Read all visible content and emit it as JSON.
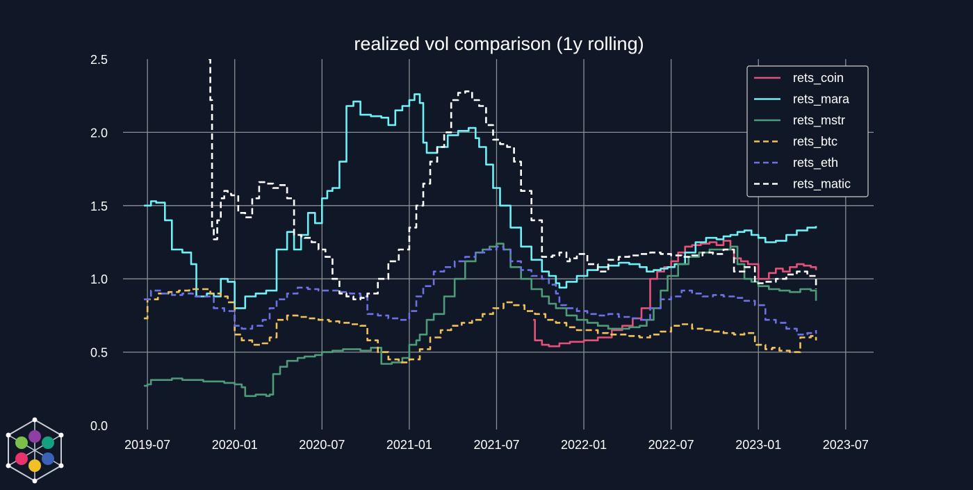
{
  "colors": {
    "background": "#101726",
    "grid": "#8b8f96",
    "legend_bg": "#101726",
    "legend_border": "#d0d0d0",
    "text": "#ffffff"
  },
  "chart_data": {
    "type": "line",
    "title": "realized vol comparison (1y rolling)",
    "xlabel": "",
    "ylabel": "",
    "ylim": [
      0,
      2.5
    ],
    "yticks": [
      0.0,
      0.5,
      1.0,
      1.5,
      2.0,
      2.5
    ],
    "ytick_labels": [
      "0.0",
      "0.5",
      "1.0",
      "1.5",
      "2.0",
      "2.5"
    ],
    "xlim": [
      2019.36,
      2023.66
    ],
    "xticks": [
      2019.5,
      2020.0,
      2020.5,
      2021.0,
      2021.5,
      2022.0,
      2022.5,
      2023.0,
      2023.5
    ],
    "xtick_labels": [
      "2019-07",
      "2020-01",
      "2020-07",
      "2021-01",
      "2021-07",
      "2022-01",
      "2022-07",
      "2023-01",
      "2023-07"
    ],
    "grid": true,
    "legend_position": "top-right",
    "series": [
      {
        "name": "rets_coin",
        "color": "#e4527a",
        "style": "solid",
        "x": [
          2021.71,
          2021.72,
          2021.76,
          2021.8,
          2021.86,
          2021.92,
          2022.0,
          2022.08,
          2022.16,
          2022.22,
          2022.28,
          2022.33,
          2022.38,
          2022.42,
          2022.46,
          2022.5,
          2022.54,
          2022.58,
          2022.62,
          2022.67,
          2022.72,
          2022.76,
          2022.8,
          2022.84,
          2022.86,
          2022.9,
          2022.94,
          2023.0,
          2023.06,
          2023.1,
          2023.14,
          2023.18,
          2023.22,
          2023.26,
          2023.3,
          2023.33
        ],
        "y": [
          0.72,
          0.58,
          0.55,
          0.54,
          0.56,
          0.57,
          0.58,
          0.6,
          0.65,
          0.68,
          0.73,
          0.8,
          1.0,
          1.05,
          1.08,
          1.12,
          1.18,
          1.22,
          1.23,
          1.24,
          1.25,
          1.23,
          1.26,
          1.2,
          1.14,
          1.12,
          1.1,
          1.0,
          1.04,
          1.07,
          1.05,
          1.08,
          1.1,
          1.09,
          1.08,
          1.06
        ]
      },
      {
        "name": "rets_mara",
        "color": "#6ff0f5",
        "style": "solid",
        "x": [
          2019.48,
          2019.52,
          2019.55,
          2019.6,
          2019.64,
          2019.7,
          2019.75,
          2019.78,
          2019.84,
          2019.88,
          2019.92,
          2019.96,
          2020.0,
          2020.06,
          2020.12,
          2020.18,
          2020.24,
          2020.3,
          2020.34,
          2020.38,
          2020.42,
          2020.46,
          2020.5,
          2020.53,
          2020.56,
          2020.6,
          2020.64,
          2020.68,
          2020.72,
          2020.78,
          2020.84,
          2020.88,
          2020.92,
          2020.96,
          2021.0,
          2021.03,
          2021.06,
          2021.08,
          2021.1,
          2021.16,
          2021.22,
          2021.28,
          2021.34,
          2021.38,
          2021.4,
          2021.44,
          2021.48,
          2021.52,
          2021.58,
          2021.64,
          2021.7,
          2021.76,
          2021.8,
          2021.84,
          2021.86,
          2021.9,
          2021.96,
          2022.02,
          2022.08,
          2022.14,
          2022.2,
          2022.26,
          2022.32,
          2022.36,
          2022.4,
          2022.44,
          2022.48,
          2022.52,
          2022.58,
          2022.64,
          2022.7,
          2022.76,
          2022.8,
          2022.84,
          2022.88,
          2022.92,
          2022.96,
          2023.0,
          2023.04,
          2023.1,
          2023.16,
          2023.22,
          2023.28,
          2023.33
        ],
        "y": [
          1.5,
          1.53,
          1.52,
          1.4,
          1.2,
          1.18,
          1.1,
          0.88,
          0.9,
          0.88,
          1.0,
          0.98,
          0.8,
          0.88,
          0.9,
          0.92,
          1.2,
          1.32,
          1.2,
          1.3,
          1.45,
          1.38,
          1.55,
          1.6,
          1.62,
          1.8,
          2.18,
          2.21,
          2.12,
          2.11,
          2.1,
          2.05,
          2.15,
          2.18,
          2.22,
          2.26,
          2.2,
          1.93,
          1.86,
          1.9,
          1.98,
          2.01,
          2.03,
          1.96,
          1.9,
          1.78,
          1.62,
          1.5,
          1.35,
          1.22,
          1.13,
          1.05,
          1.02,
          0.97,
          0.94,
          0.98,
          1.02,
          1.06,
          1.08,
          1.09,
          1.11,
          1.1,
          1.08,
          1.05,
          1.06,
          1.07,
          1.08,
          1.1,
          1.18,
          1.25,
          1.28,
          1.27,
          1.29,
          1.3,
          1.32,
          1.33,
          1.3,
          1.28,
          1.25,
          1.26,
          1.3,
          1.33,
          1.35,
          1.36
        ]
      },
      {
        "name": "rets_mstr",
        "color": "#4f9a78",
        "style": "solid",
        "x": [
          2019.48,
          2019.5,
          2019.52,
          2019.58,
          2019.64,
          2019.7,
          2019.76,
          2019.82,
          2019.88,
          2019.94,
          2020.0,
          2020.04,
          2020.06,
          2020.12,
          2020.18,
          2020.2,
          2020.22,
          2020.26,
          2020.3,
          2020.36,
          2020.4,
          2020.46,
          2020.5,
          2020.56,
          2020.62,
          2020.68,
          2020.72,
          2020.78,
          2020.84,
          2020.9,
          2020.96,
          2021.0,
          2021.04,
          2021.06,
          2021.1,
          2021.14,
          2021.2,
          2021.26,
          2021.32,
          2021.38,
          2021.42,
          2021.46,
          2021.5,
          2021.54,
          2021.58,
          2021.64,
          2021.7,
          2021.76,
          2021.8,
          2021.84,
          2021.9,
          2021.96,
          2022.02,
          2022.08,
          2022.14,
          2022.2,
          2022.26,
          2022.32,
          2022.36,
          2022.4,
          2022.44,
          2022.48,
          2022.54,
          2022.6,
          2022.66,
          2022.72,
          2022.78,
          2022.84,
          2022.88,
          2022.92,
          2022.96,
          2023.0,
          2023.06,
          2023.12,
          2023.18,
          2023.24,
          2023.3,
          2023.33
        ],
        "y": [
          0.27,
          0.28,
          0.31,
          0.31,
          0.32,
          0.31,
          0.31,
          0.3,
          0.3,
          0.29,
          0.28,
          0.26,
          0.2,
          0.21,
          0.2,
          0.21,
          0.35,
          0.4,
          0.44,
          0.46,
          0.47,
          0.48,
          0.5,
          0.51,
          0.52,
          0.52,
          0.51,
          0.53,
          0.42,
          0.43,
          0.46,
          0.55,
          0.58,
          0.62,
          0.72,
          0.76,
          0.88,
          1.0,
          1.12,
          1.18,
          1.2,
          1.22,
          1.24,
          1.2,
          1.08,
          1.0,
          0.93,
          0.88,
          0.83,
          0.8,
          0.75,
          0.72,
          0.7,
          0.68,
          0.66,
          0.66,
          0.67,
          0.68,
          0.72,
          0.8,
          0.92,
          1.02,
          1.1,
          1.15,
          1.18,
          1.2,
          1.2,
          1.22,
          1.1,
          1.0,
          0.98,
          0.95,
          0.93,
          0.92,
          0.91,
          0.93,
          0.92,
          0.85
        ]
      },
      {
        "name": "rets_btc",
        "color": "#f1c15c",
        "style": "dashed",
        "x": [
          2019.48,
          2019.5,
          2019.56,
          2019.62,
          2019.68,
          2019.74,
          2019.8,
          2019.86,
          2019.92,
          2019.96,
          2020.0,
          2020.04,
          2020.1,
          2020.16,
          2020.2,
          2020.24,
          2020.3,
          2020.36,
          2020.42,
          2020.48,
          2020.54,
          2020.6,
          2020.66,
          2020.72,
          2020.76,
          2020.82,
          2020.88,
          2020.94,
          2021.0,
          2021.06,
          2021.12,
          2021.18,
          2021.24,
          2021.3,
          2021.36,
          2021.42,
          2021.48,
          2021.54,
          2021.6,
          2021.66,
          2021.72,
          2021.78,
          2021.84,
          2021.9,
          2021.96,
          2022.02,
          2022.08,
          2022.14,
          2022.2,
          2022.26,
          2022.32,
          2022.38,
          2022.44,
          2022.5,
          2022.56,
          2022.62,
          2022.68,
          2022.74,
          2022.8,
          2022.86,
          2022.92,
          2022.98,
          2023.04,
          2023.08,
          2023.12,
          2023.18,
          2023.24,
          2023.3,
          2023.33
        ],
        "y": [
          0.73,
          0.86,
          0.9,
          0.91,
          0.92,
          0.93,
          0.93,
          0.9,
          0.88,
          0.84,
          0.62,
          0.58,
          0.55,
          0.56,
          0.6,
          0.72,
          0.75,
          0.74,
          0.73,
          0.72,
          0.71,
          0.7,
          0.69,
          0.68,
          0.58,
          0.5,
          0.45,
          0.43,
          0.45,
          0.52,
          0.6,
          0.65,
          0.68,
          0.7,
          0.72,
          0.76,
          0.8,
          0.84,
          0.82,
          0.78,
          0.76,
          0.72,
          0.7,
          0.67,
          0.65,
          0.65,
          0.63,
          0.62,
          0.62,
          0.61,
          0.6,
          0.62,
          0.64,
          0.68,
          0.69,
          0.66,
          0.65,
          0.64,
          0.63,
          0.62,
          0.63,
          0.55,
          0.52,
          0.53,
          0.51,
          0.5,
          0.6,
          0.61,
          0.58
        ]
      },
      {
        "name": "rets_eth",
        "color": "#6c72e6",
        "style": "dashed",
        "x": [
          2019.48,
          2019.52,
          2019.58,
          2019.64,
          2019.7,
          2019.76,
          2019.82,
          2019.88,
          2019.94,
          2020.0,
          2020.04,
          2020.1,
          2020.16,
          2020.2,
          2020.24,
          2020.3,
          2020.36,
          2020.42,
          2020.48,
          2020.54,
          2020.6,
          2020.66,
          2020.72,
          2020.76,
          2020.82,
          2020.88,
          2020.94,
          2021.0,
          2021.04,
          2021.08,
          2021.14,
          2021.2,
          2021.26,
          2021.32,
          2021.38,
          2021.44,
          2021.5,
          2021.54,
          2021.58,
          2021.64,
          2021.7,
          2021.76,
          2021.8,
          2021.84,
          2021.86,
          2021.9,
          2021.96,
          2022.02,
          2022.08,
          2022.14,
          2022.2,
          2022.26,
          2022.32,
          2022.38,
          2022.44,
          2022.5,
          2022.56,
          2022.62,
          2022.68,
          2022.74,
          2022.8,
          2022.86,
          2022.92,
          2022.98,
          2023.04,
          2023.1,
          2023.16,
          2023.22,
          2023.28,
          2023.33
        ],
        "y": [
          0.86,
          0.92,
          0.9,
          0.89,
          0.9,
          0.88,
          0.88,
          0.8,
          0.78,
          0.68,
          0.66,
          0.68,
          0.72,
          0.8,
          0.86,
          0.9,
          0.94,
          0.93,
          0.92,
          0.92,
          0.91,
          0.9,
          0.88,
          0.76,
          0.75,
          0.73,
          0.72,
          0.78,
          0.88,
          0.95,
          1.05,
          1.08,
          1.12,
          1.15,
          1.18,
          1.2,
          1.22,
          1.2,
          1.12,
          1.06,
          1.02,
          1.0,
          0.96,
          0.9,
          0.82,
          0.8,
          0.78,
          0.76,
          0.75,
          0.76,
          0.74,
          0.73,
          0.72,
          0.8,
          0.86,
          0.88,
          0.92,
          0.9,
          0.88,
          0.89,
          0.88,
          0.87,
          0.85,
          0.82,
          0.72,
          0.7,
          0.66,
          0.62,
          0.63,
          0.65
        ]
      },
      {
        "name": "rets_matic",
        "color": "#ffffff",
        "style": "dashed",
        "x": [
          2019.85,
          2019.86,
          2019.87,
          2019.88,
          2019.9,
          2019.92,
          2019.94,
          2019.96,
          2019.98,
          2020.02,
          2020.06,
          2020.1,
          2020.14,
          2020.18,
          2020.22,
          2020.26,
          2020.3,
          2020.34,
          2020.38,
          2020.4,
          2020.44,
          2020.48,
          2020.52,
          2020.56,
          2020.6,
          2020.64,
          2020.68,
          2020.72,
          2020.76,
          2020.82,
          2020.88,
          2020.94,
          2021.0,
          2021.04,
          2021.08,
          2021.12,
          2021.16,
          2021.2,
          2021.24,
          2021.28,
          2021.32,
          2021.36,
          2021.4,
          2021.44,
          2021.48,
          2021.52,
          2021.56,
          2021.6,
          2021.64,
          2021.7,
          2021.76,
          2021.82,
          2021.86,
          2021.9,
          2021.92,
          2021.96,
          2022.02,
          2022.08,
          2022.14,
          2022.2,
          2022.26,
          2022.32,
          2022.38,
          2022.44,
          2022.5,
          2022.56,
          2022.62,
          2022.68,
          2022.74,
          2022.8,
          2022.86,
          2022.92,
          2022.98,
          2023.04,
          2023.1,
          2023.16,
          2023.22,
          2023.28,
          2023.33
        ],
        "y": [
          2.5,
          2.22,
          1.35,
          1.27,
          1.4,
          1.55,
          1.6,
          1.58,
          1.57,
          1.45,
          1.42,
          1.55,
          1.66,
          1.65,
          1.62,
          1.64,
          1.55,
          1.3,
          1.29,
          1.28,
          1.25,
          1.2,
          1.15,
          1.0,
          0.9,
          0.88,
          0.86,
          0.87,
          0.9,
          1.0,
          1.12,
          1.2,
          1.35,
          1.5,
          1.65,
          1.8,
          1.9,
          2.0,
          2.22,
          2.27,
          2.28,
          2.22,
          2.18,
          2.05,
          1.95,
          1.92,
          1.9,
          1.8,
          1.6,
          1.4,
          1.15,
          1.16,
          1.18,
          1.12,
          1.14,
          1.17,
          1.1,
          1.05,
          1.13,
          1.15,
          1.16,
          1.17,
          1.18,
          1.17,
          1.16,
          1.15,
          1.16,
          1.18,
          1.17,
          1.2,
          1.05,
          1.08,
          0.97,
          0.98,
          1.0,
          1.03,
          1.05,
          1.02,
          0.93
        ]
      }
    ]
  }
}
